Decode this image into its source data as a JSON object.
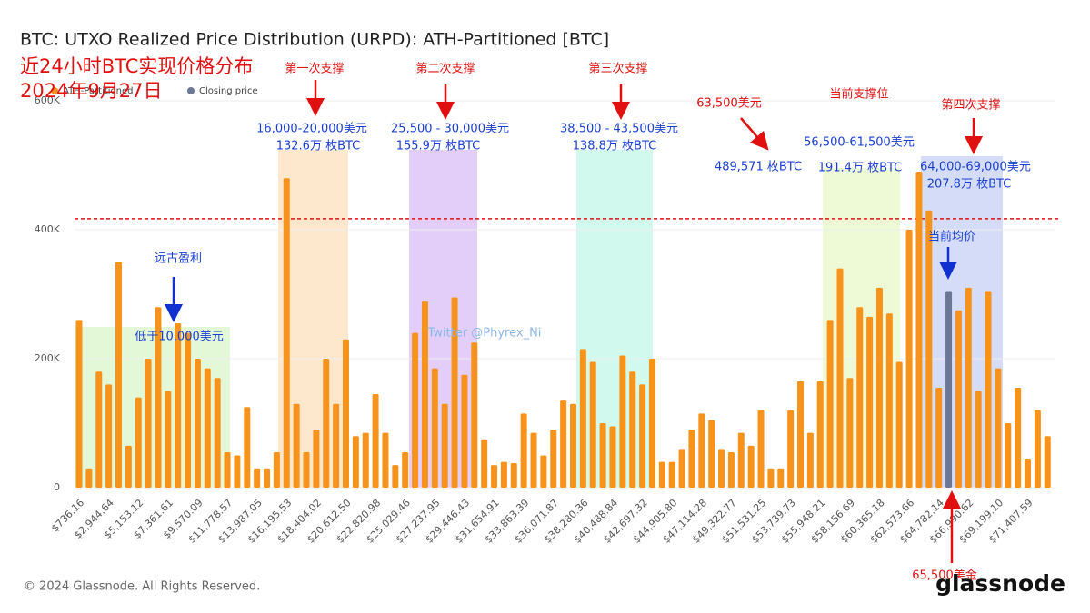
{
  "chart_data": {
    "type": "bar",
    "title": "BTC: UTXO Realized Price Distribution (URPD): ATH-Partitioned [BTC]",
    "overlay_title": "近24小时BTC实现价格分布",
    "overlay_date": "2024年9月27日",
    "footer": "© 2024 Glassnode. All Rights Reserved.",
    "brand": "glassnode",
    "categories": [
      "$736.16",
      null,
      null,
      "$2,944.64",
      null,
      null,
      "$5,153.12",
      null,
      null,
      "$7,361.61",
      null,
      null,
      "$9,570.09",
      null,
      null,
      "$11,778.57",
      null,
      null,
      "$13,987.05",
      null,
      null,
      "$16,195.53",
      null,
      null,
      "$18,404.02",
      null,
      null,
      "$20,612.50",
      null,
      null,
      "$22,820.98",
      null,
      null,
      "$25,029.46",
      null,
      null,
      "$27,237.95",
      null,
      null,
      "$29,446.43",
      null,
      null,
      "$31,654.91",
      null,
      null,
      "$33,863.39",
      null,
      null,
      "$36,071.87",
      null,
      null,
      "$38,280.36",
      null,
      null,
      "$40,488.84",
      null,
      null,
      "$42,697.32",
      null,
      null,
      "$44,905.80",
      null,
      null,
      "$47,114.28",
      null,
      null,
      "$49,322.77",
      null,
      null,
      "$51,531.25",
      null,
      null,
      "$53,739.73",
      null,
      null,
      "$55,948.21",
      null,
      null,
      "$58,156.69",
      null,
      null,
      "$60,365.18",
      null,
      null,
      "$62,573.66",
      null,
      null,
      "$64,782.14",
      null,
      null,
      "$66,990.62",
      null,
      null,
      "$69,199.10",
      null,
      null,
      "$71,407.59",
      null,
      null
    ],
    "series": [
      {
        "name": "ATH-Partitioned",
        "color": "#f7931a",
        "values": [
          260000,
          30000,
          180000,
          160000,
          350000,
          65000,
          140000,
          200000,
          280000,
          150000,
          255000,
          240000,
          200000,
          185000,
          170000,
          55000,
          50000,
          125000,
          30000,
          30000,
          55000,
          480000,
          130000,
          55000,
          90000,
          200000,
          130000,
          230000,
          80000,
          85000,
          145000,
          85000,
          35000,
          55000,
          240000,
          290000,
          185000,
          130000,
          295000,
          175000,
          225000,
          75000,
          35000,
          40000,
          38000,
          115000,
          85000,
          50000,
          90000,
          135000,
          130000,
          215000,
          195000,
          100000,
          95000,
          205000,
          180000,
          160000,
          200000,
          40000,
          40000,
          60000,
          90000,
          115000,
          105000,
          60000,
          55000,
          85000,
          65000,
          120000,
          30000,
          30000,
          120000,
          165000,
          85000,
          165000,
          260000,
          340000,
          170000,
          280000,
          265000,
          310000,
          270000,
          195000,
          400000,
          490000,
          430000,
          155000,
          null,
          275000,
          310000,
          150000,
          305000,
          185000,
          100000,
          155000,
          45000,
          120000,
          80000
        ]
      },
      {
        "name": "Closing price",
        "color": "#6b7794",
        "values": [
          null,
          null,
          null,
          null,
          null,
          null,
          null,
          null,
          null,
          null,
          null,
          null,
          null,
          null,
          null,
          null,
          null,
          null,
          null,
          null,
          null,
          null,
          null,
          null,
          null,
          null,
          null,
          null,
          null,
          null,
          null,
          null,
          null,
          null,
          null,
          null,
          null,
          null,
          null,
          null,
          null,
          null,
          null,
          null,
          null,
          null,
          null,
          null,
          null,
          null,
          null,
          null,
          null,
          null,
          null,
          null,
          null,
          null,
          null,
          null,
          null,
          null,
          null,
          null,
          null,
          null,
          null,
          null,
          null,
          null,
          null,
          null,
          null,
          null,
          null,
          null,
          null,
          null,
          null,
          null,
          null,
          null,
          null,
          null,
          null,
          null,
          null,
          null,
          305000,
          null,
          null,
          null,
          null,
          null,
          null,
          null,
          null,
          null,
          null
        ]
      }
    ],
    "ylim": [
      0,
      600000
    ],
    "yticks": [
      0,
      {
        "value": 200000,
        "label": "200K"
      },
      {
        "value": 400000,
        "label": "400K"
      },
      {
        "value": 600000,
        "label": "600K"
      }
    ],
    "grid": true,
    "hline": 417000,
    "annotations": [
      "第一次支撑",
      "第二次支撑",
      "第三次支撑",
      "63,500美元",
      "当前支撑位",
      "第四次支撑",
      "16,000-20,000美元",
      "132.6万 枚BTC",
      "25,500 - 30,000美元",
      "155.9万 枚BTC",
      "38,500 - 43,500美元",
      "138.8万 枚BTC",
      "489,571 枚BTC",
      "56,500-61,500美元",
      "191.4万 枚BTC",
      "64,000-69,000美元",
      "207.8万 枚BTC",
      "远古盈利",
      "低于10,000美元",
      "当前均价",
      "Twitter @Phyrex_Ni",
      "65,500美金"
    ]
  }
}
